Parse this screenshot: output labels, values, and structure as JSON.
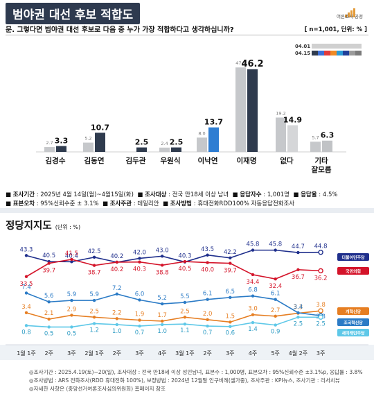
{
  "header": {
    "title": "범야권 대선 후보 적합도",
    "logo_text": "여론조사 공정"
  },
  "question": {
    "text": "문. 그렇다면 범야권 대선 후보로 다음 중 누가 가장 적합하다고 생각하십니까?",
    "note": "[ n=1,001, 단위: % ]"
  },
  "legend_top": {
    "d1": "04.01",
    "d2": "04.15"
  },
  "survey_info": {
    "line1": [
      {
        "k": "조사기간",
        "v": "2025년 4월 14일(월)~4월15일(화)"
      },
      {
        "k": "조사대상",
        "v": "전국 만18세 이상 남녀"
      },
      {
        "k": "응답자수",
        "v": "1,001명"
      },
      {
        "k": "응답율",
        "v": "4.5%"
      }
    ],
    "line2": [
      {
        "k": "표본오차",
        "v": "95%신뢰수준 ± 3.1%"
      },
      {
        "k": "조사주관",
        "v": "데일리안"
      },
      {
        "k": "조사방법",
        "v": "휴대전화RDD100% 자동응답전화조사"
      }
    ]
  },
  "section2": {
    "title": "정당지지도",
    "unit": "(단위 : %)"
  },
  "notes": [
    "◎조사기간 : 2025.4.19(토)~20(일), 조사대상 : 전국 만18세 이상 성인남녀, 표본수 : 1,000명, 표본오차 : 95%신뢰수준 ±3.1%p, 응답률 : 3.8%",
    "◎조사방법 : ARS 전화조사(RDD 휴대전화 100%), 보정방법 : 2024년 12월말 인구비례(셀가중), 조사주관 : KPI뉴스, 조사기관 : 리서치뷰",
    "◎자세한 사항은 (중앙선거여론조사심의위원회) 홈페이지 참조"
  ],
  "chart_data": [
    {
      "type": "bar",
      "title": "범야권 대선 후보 적합도",
      "categories": [
        "김경수",
        "김동연",
        "김두관",
        "우원식",
        "이낙연",
        "이재명",
        "없다",
        "기타\n잘모름"
      ],
      "series": [
        {
          "name": "04.01",
          "values": [
            2.7,
            5.2,
            null,
            2.4,
            8.0,
            47.2,
            19.2,
            5.7
          ]
        },
        {
          "name": "04.15",
          "values": [
            3.3,
            10.7,
            2.5,
            2.5,
            13.7,
            46.2,
            14.9,
            6.3
          ]
        }
      ],
      "colors": {
        "old": "#c6c8cb",
        "new": "#2f3b4e",
        "highlight_new": {
          "이낙연": "#2e7dd2"
        },
        "highlight_new_light": {
          "없다": "#d5d6d8",
          "기타\n잘모름": "#c1c3c6"
        }
      },
      "ylim": [
        0,
        50
      ]
    },
    {
      "type": "line",
      "title": "정당지지도",
      "categories": [
        "1월 1주",
        "2주",
        "3주",
        "2월 1주",
        "2주",
        "3주",
        "4주",
        "3월 1주",
        "2주",
        "3주",
        "4주",
        "5주",
        "4월 2주",
        "3주"
      ],
      "series": [
        {
          "name": "더불어민주당",
          "color": "#1f2f8c",
          "labelPos": "above",
          "values": [
            43.3,
            40.5,
            40.4,
            42.5,
            40.2,
            42.0,
            43.0,
            40.3,
            43.5,
            42.2,
            45.8,
            45.8,
            44.7,
            44.8
          ]
        },
        {
          "name": "국민의힘",
          "color": "#d4142a",
          "labelPos": "mixed",
          "values": [
            33.5,
            39.7,
            41.5,
            38.7,
            40.2,
            40.3,
            38.8,
            40.5,
            40.0,
            39.7,
            34.4,
            32.4,
            36.7,
            36.2
          ]
        },
        {
          "name": "개혁신당",
          "color": "#e67e22",
          "labelPos": "above",
          "values": [
            3.4,
            2.1,
            2.9,
            2.5,
            2.2,
            1.9,
            1.7,
            2.5,
            2.0,
            1.5,
            3.0,
            2.7,
            3.3,
            3.8
          ]
        },
        {
          "name": "조국혁신당",
          "color": "#2b7bc6",
          "labelPos": "above",
          "values": [
            7.4,
            5.6,
            5.9,
            5.9,
            7.2,
            6.0,
            5.2,
            5.5,
            6.1,
            6.5,
            6.8,
            6.1,
            3.4,
            2.8
          ]
        },
        {
          "name": "새미래민주당",
          "color": "#5ec8e8",
          "labelPos": "below",
          "values": [
            0.8,
            0.5,
            0.5,
            1.2,
            1.0,
            0.7,
            1.0,
            1.1,
            0.7,
            0.6,
            1.4,
            0.9,
            2.5,
            2.5
          ]
        }
      ]
    }
  ]
}
